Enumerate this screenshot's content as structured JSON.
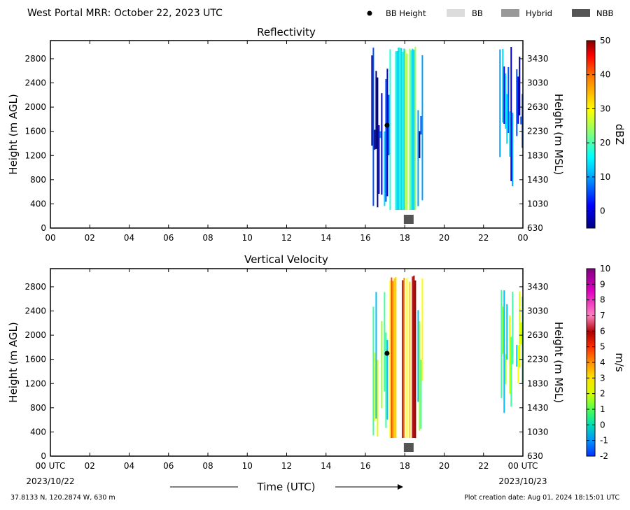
{
  "header": {
    "title": "West Portal MRR:  October 22, 2023 UTC",
    "legend": [
      {
        "label": "BB Height",
        "symbol": "dot",
        "color": "#000000"
      },
      {
        "label": "BB",
        "symbol": "box",
        "color": "#dcdcdc"
      },
      {
        "label": "Hybrid",
        "symbol": "box",
        "color": "#999999"
      },
      {
        "label": "NBB",
        "symbol": "box",
        "color": "#555555"
      }
    ]
  },
  "footer": {
    "location": "37.8133 N, 120.2874 W, 630 m",
    "creation": "Plot creation date: Aug 01, 2024 18:15:01 UTC",
    "xlabel": "Time (UTC)",
    "start_date": "2023/10/22",
    "end_date": "2023/10/23"
  },
  "chart_data": [
    {
      "type": "heatmap",
      "title": "Reflectivity",
      "ylabel_left": "Height (m AGL)",
      "ylabel_right": "Height (m MSL)",
      "xlabel": "Time (UTC)",
      "x_ticks": [
        "00",
        "02",
        "04",
        "06",
        "08",
        "10",
        "12",
        "14",
        "16",
        "18",
        "20",
        "22",
        "00"
      ],
      "xlim": [
        0,
        24
      ],
      "ylim": [
        0,
        3100
      ],
      "y_ticks_left": [
        0,
        400,
        800,
        1200,
        1600,
        2000,
        2400,
        2800
      ],
      "y_ticks_right": [
        630,
        1030,
        1430,
        1830,
        2230,
        2630,
        3030,
        3430
      ],
      "colorbar": {
        "label": "dBZ",
        "ticks": [
          0,
          10,
          20,
          30,
          40,
          50
        ],
        "range": [
          -5,
          50
        ]
      },
      "bb_height_points": [
        {
          "time_utc": 17.1,
          "height_m_agl": 1700
        }
      ],
      "bb_type_markers": [
        {
          "time_utc": 18.2,
          "type": "NBB"
        }
      ],
      "echo_periods": [
        {
          "start_utc": 16.3,
          "end_utc": 18.9,
          "top_m_agl": 3000,
          "bottom_m_agl": 300
        },
        {
          "start_utc": 22.8,
          "end_utc": 24.0,
          "top_m_agl": 3000,
          "bottom_m_agl": 600
        }
      ]
    },
    {
      "type": "heatmap",
      "title": "Vertical Velocity",
      "ylabel_left": "Height (m AGL)",
      "ylabel_right": "Height (m MSL)",
      "xlabel": "Time (UTC)",
      "x_ticks": [
        "00 UTC",
        "02",
        "04",
        "06",
        "08",
        "10",
        "12",
        "14",
        "16",
        "18",
        "20",
        "22",
        "00 UTC"
      ],
      "xlim": [
        0,
        24
      ],
      "ylim": [
        0,
        3100
      ],
      "y_ticks_left": [
        0,
        400,
        800,
        1200,
        1600,
        2000,
        2400,
        2800
      ],
      "y_ticks_right": [
        630,
        1030,
        1430,
        1830,
        2230,
        2630,
        3030,
        3430
      ],
      "colorbar": {
        "label": "m/s",
        "ticks": [
          -2,
          -1,
          0,
          1,
          2,
          3,
          4,
          5,
          6,
          7,
          8,
          9,
          10
        ],
        "range": [
          -2,
          10
        ]
      },
      "bb_height_points": [
        {
          "time_utc": 17.1,
          "height_m_agl": 1700
        }
      ],
      "bb_type_markers": [
        {
          "time_utc": 18.2,
          "type": "NBB"
        }
      ],
      "echo_periods": [
        {
          "start_utc": 16.3,
          "end_utc": 18.9,
          "top_m_agl": 3000,
          "bottom_m_agl": 300
        },
        {
          "start_utc": 22.8,
          "end_utc": 24.0,
          "top_m_agl": 3000,
          "bottom_m_agl": 600
        }
      ]
    }
  ]
}
